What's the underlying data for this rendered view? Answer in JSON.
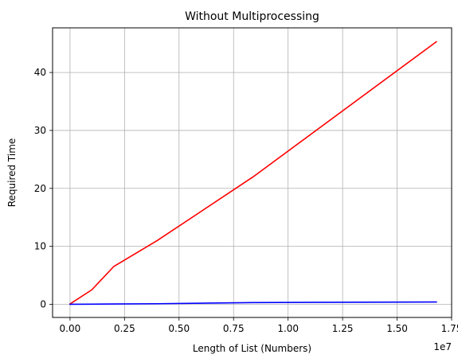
{
  "chart_data": {
    "type": "line",
    "title": "Without Multiprocessing",
    "xlabel": "Length of List (Numbers)",
    "ylabel": "Required Time",
    "x_offset_text": "1e7",
    "xlim": [
      -0.08,
      1.75
    ],
    "ylim": [
      -2.27,
      47.7
    ],
    "xticks": [
      0.0,
      0.25,
      0.5,
      0.75,
      1.0,
      1.25,
      1.5,
      1.75
    ],
    "xtick_labels": [
      "0.00",
      "0.25",
      "0.50",
      "0.75",
      "1.00",
      "1.25",
      "1.50",
      "1.75"
    ],
    "yticks": [
      0,
      10,
      20,
      30,
      40
    ],
    "ytick_labels": [
      "0",
      "10",
      "20",
      "30",
      "40"
    ],
    "grid": true,
    "series": [
      {
        "color": "#ff0000",
        "x": [
          0.0,
          0.1,
          0.2,
          0.4,
          0.84,
          1.68
        ],
        "y": [
          0.05,
          2.5,
          6.5,
          11.0,
          22.0,
          45.3
        ]
      },
      {
        "color": "#0000ff",
        "x": [
          0.0,
          0.1,
          0.2,
          0.4,
          0.84,
          1.68
        ],
        "y": [
          0.0,
          0.02,
          0.05,
          0.1,
          0.3,
          0.4
        ]
      }
    ]
  }
}
